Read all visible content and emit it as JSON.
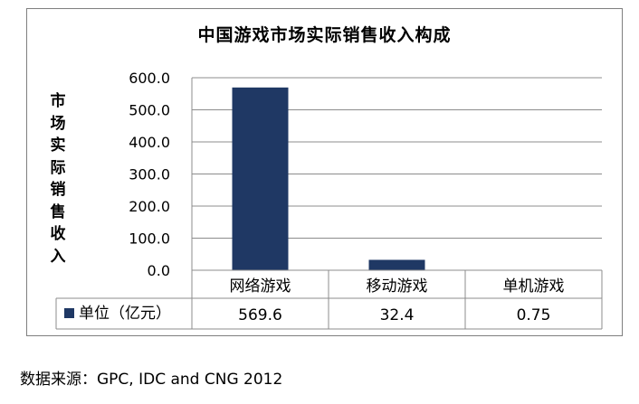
{
  "chart_data": {
    "type": "bar",
    "title": "中国游戏市场实际销售收入构成",
    "ylabel": "市场实际销售收入",
    "xlabel": "",
    "categories": [
      "网络游戏",
      "移动游戏",
      "单机游戏"
    ],
    "series": [
      {
        "name": "单位（亿元）",
        "values": [
          569.6,
          32.4,
          0.75
        ],
        "value_labels": [
          "569.6",
          "32.4",
          "0.75"
        ]
      }
    ],
    "ylim": [
      0,
      600
    ],
    "yticks": [
      "0.0",
      "100.0",
      "200.0",
      "300.0",
      "400.0",
      "500.0",
      "600.0"
    ],
    "grid": true,
    "legend": "data-table",
    "bar_color": "#1f3864"
  },
  "footer": {
    "source": "数据来源：GPC, IDC and CNG 2012"
  }
}
